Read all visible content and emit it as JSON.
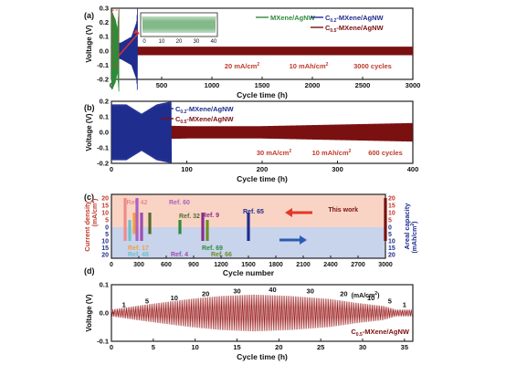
{
  "chart_data": [
    {
      "panel": "(a)",
      "type": "line",
      "xlabel": "Cycle time (h)",
      "ylabel": "Voltage (V)",
      "xlim": [
        0,
        3000
      ],
      "ylim": [
        -0.2,
        0.3
      ],
      "xticks": [
        "0",
        "500",
        "1000",
        "1500",
        "2000",
        "2500",
        "3000"
      ],
      "yticks": [
        "-0.2",
        "-0.1",
        "0.0",
        "0.1",
        "0.2",
        "0.3"
      ],
      "inset_xticks": [
        "0",
        "10",
        "20",
        "30",
        "40"
      ],
      "legend": [
        "MXene/AgNW",
        "-MXene/AgNW",
        "-MXene/AgNW"
      ],
      "legend_sub": [
        "",
        "0.2",
        "0.5"
      ],
      "legend_prefix": [
        "",
        "C",
        "C"
      ],
      "conditions": [
        "20 mA/cm",
        "10 mAh/cm",
        "3000 cycles"
      ],
      "series": [
        {
          "name": "MXene/AgNW",
          "color": "#2e8b3a",
          "x": [
            0,
            10,
            20,
            40,
            60,
            75
          ],
          "amplitude": [
            0.27,
            0.27,
            0.25,
            0.22,
            0.15,
            0.3
          ]
        },
        {
          "name": "C0.2-MXene/AgNW",
          "color": "#1f2d8f",
          "x": [
            0,
            50,
            100,
            150,
            200,
            250,
            260
          ],
          "amplitude": [
            0.05,
            0.05,
            0.06,
            0.08,
            0.1,
            0.2,
            0.3
          ]
        },
        {
          "name": "C0.5-MXene/AgNW",
          "color": "#7a1010",
          "x": [
            0,
            500,
            1000,
            1500,
            2000,
            2500,
            3000
          ],
          "amplitude": [
            0.03,
            0.03,
            0.03,
            0.03,
            0.03,
            0.03,
            0.03
          ]
        }
      ]
    },
    {
      "panel": "(b)",
      "type": "line",
      "xlabel": "Cycle time (h)",
      "ylabel": "Voltage (V)",
      "xlim": [
        0,
        400
      ],
      "ylim": [
        -0.2,
        0.2
      ],
      "xticks": [
        "0",
        "100",
        "200",
        "300",
        "400"
      ],
      "yticks": [
        "-0.2",
        "-0.1",
        "0.0",
        "0.1",
        "0.2"
      ],
      "legend": [
        "-MXene/AgNW",
        "-MXene/AgNW"
      ],
      "legend_sub": [
        "0.2",
        "0.5"
      ],
      "legend_prefix": [
        "C",
        "C"
      ],
      "conditions": [
        "30 mA/cm",
        "10 mAh/cm",
        "600 cycles"
      ],
      "series": [
        {
          "name": "C0.2-MXene/AgNW",
          "color": "#1f2d8f",
          "x": [
            0,
            20,
            40,
            60,
            80
          ],
          "amplitude": [
            0.18,
            0.18,
            0.12,
            0.18,
            0.2
          ]
        },
        {
          "name": "C0.5-MXene/AgNW",
          "color": "#7a1010",
          "x": [
            0,
            100,
            200,
            300,
            400
          ],
          "amplitude": [
            0.05,
            0.04,
            0.04,
            0.05,
            0.06
          ]
        }
      ]
    },
    {
      "panel": "(c)",
      "type": "bar",
      "xlabel": "Cycle number",
      "ylabel_left": "Current density",
      "ylabel_left_unit": "(mA/cm",
      "ylabel_right": "Areal capacity",
      "ylabel_right_unit": "(mAh/cm",
      "xlim": [
        0,
        3000
      ],
      "xticks": [
        "0",
        "300",
        "600",
        "900",
        "1200",
        "1500",
        "1800",
        "2100",
        "2400",
        "2700",
        "3000"
      ],
      "yticks_top": [
        "20",
        "15",
        "10",
        "5"
      ],
      "yticks_bottom": [
        "0",
        "5",
        "10",
        "15",
        "20"
      ],
      "yticks_right_top": [
        "20",
        "15",
        "10",
        "5"
      ],
      "yticks_right_bottom": [
        "0",
        "5",
        "10",
        "15",
        "20"
      ],
      "bars": [
        {
          "label": "Ref. 42",
          "cycles": 150,
          "current": 20,
          "capacity": 10,
          "color": "#f08a8a"
        },
        {
          "label": "Ref. 48",
          "cycles": 200,
          "current": 5,
          "capacity": 10,
          "color": "#6fc1c9"
        },
        {
          "label": "Ref. 17",
          "cycles": 250,
          "current": 10,
          "capacity": 5,
          "color": "#f0a040"
        },
        {
          "label": "Ref. 60",
          "cycles": 280,
          "current": 20,
          "capacity": 10,
          "color": "#b060c0"
        },
        {
          "label": "Ref. 4",
          "cycles": 330,
          "current": 10,
          "capacity": 10,
          "color": "#9b4db0"
        },
        {
          "label": "Ref. 32",
          "cycles": 420,
          "current": 10,
          "capacity": 5,
          "color": "#556b2f"
        },
        {
          "label": "Ref. 69",
          "cycles": 750,
          "current": 5,
          "capacity": 5,
          "color": "#2e8b3a"
        },
        {
          "label": "Ref. 9",
          "cycles": 1000,
          "current": 10,
          "capacity": 10,
          "color": "#8a2b8a"
        },
        {
          "label": "Ref. 66",
          "cycles": 1050,
          "current": 5,
          "capacity": 10,
          "color": "#6b8e23"
        },
        {
          "label": "Ref. 65",
          "cycles": 1500,
          "current": 10,
          "capacity": 10,
          "color": "#1f2d8f"
        },
        {
          "label": "This work",
          "cycles": 3000,
          "current": 20,
          "capacity": 10,
          "color": "#7a1010"
        }
      ]
    },
    {
      "panel": "(d)",
      "type": "line",
      "xlabel": "Cycle time (h)",
      "ylabel": "Voltage (V)",
      "xlim": [
        0,
        36
      ],
      "ylim": [
        -0.1,
        0.1
      ],
      "xticks": [
        "0",
        "5",
        "10",
        "15",
        "20",
        "25",
        "30",
        "35"
      ],
      "yticks": [
        "-0.1",
        "0.0",
        "0.1"
      ],
      "unit_label": "(mA/cm",
      "series_label_prefix": "C",
      "series_label_sub": "0.5",
      "series_label_rest": "-MXene/AgNW",
      "series": [
        {
          "name": "C0.5-MXene/AgNW",
          "color": "#9a1a1a",
          "rate_steps": [
            1,
            5,
            10,
            20,
            30,
            40,
            30,
            20,
            10,
            5,
            1
          ],
          "step_x": [
            0,
            3,
            5.5,
            9.5,
            13,
            17,
            21.5,
            26,
            29.5,
            32.5,
            34
          ],
          "amplitude": [
            0.012,
            0.025,
            0.035,
            0.05,
            0.06,
            0.065,
            0.06,
            0.05,
            0.035,
            0.025,
            0.012
          ]
        }
      ]
    }
  ]
}
